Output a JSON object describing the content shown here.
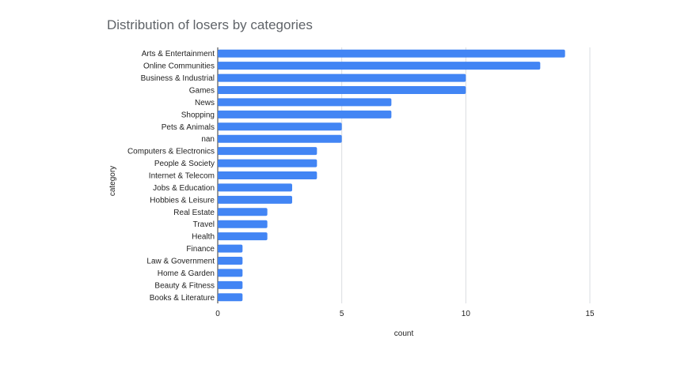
{
  "chart_data": {
    "type": "bar",
    "orientation": "horizontal",
    "title": "Distribution of losers by categories",
    "xlabel": "count",
    "ylabel": "category",
    "xlim": [
      0,
      15
    ],
    "xticks": [
      0,
      5,
      10,
      15
    ],
    "grid": true,
    "bar_color": "#4285f4",
    "categories": [
      "Arts & Entertainment",
      "Online Communities",
      "Business & Industrial",
      "Games",
      "News",
      "Shopping",
      "Pets & Animals",
      "nan",
      "Computers & Electronics",
      "People & Society",
      "Internet & Telecom",
      "Jobs & Education",
      "Hobbies & Leisure",
      "Real Estate",
      "Travel",
      "Health",
      "Finance",
      "Law & Government",
      "Home & Garden",
      "Beauty & Fitness",
      "Books & Literature"
    ],
    "values": [
      14,
      13,
      10,
      10,
      7,
      7,
      5,
      5,
      4,
      4,
      4,
      3,
      3,
      2,
      2,
      2,
      1,
      1,
      1,
      1,
      1
    ]
  }
}
